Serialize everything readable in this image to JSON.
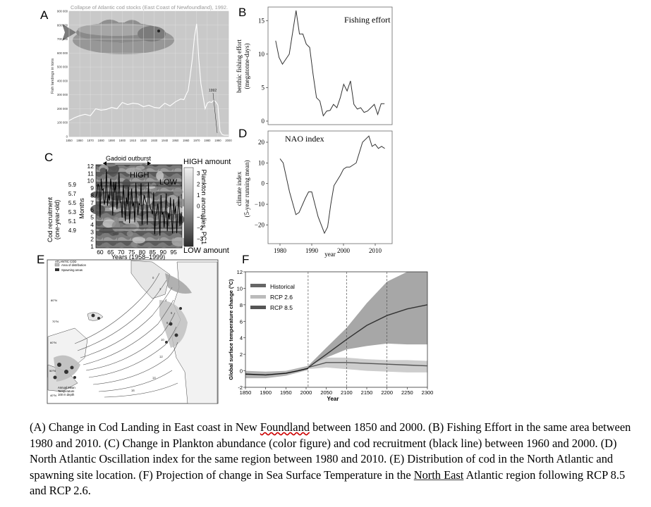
{
  "panels": {
    "A": {
      "letter": "A",
      "title": "Collapse of Atlantic cod stocks (East Coast of Newfoundland), 1992.",
      "ylabel": "Fish landings in tons",
      "yticks": [
        "900 000",
        "800 000",
        "700 000",
        "600 000",
        "500 000",
        "400 000",
        "300 000",
        "200 000",
        "100 000",
        "0"
      ],
      "xticks": [
        "1850",
        "1860",
        "1870",
        "1880",
        "1890",
        "1900",
        "1910",
        "1920",
        "1930",
        "1940",
        "1950",
        "1960",
        "1970",
        "1980",
        "1990",
        "2000"
      ],
      "annotation_1992": "1992"
    },
    "B": {
      "letter": "B",
      "legend": "Fishing effort",
      "ylabel_1": "benthic fishing effort",
      "ylabel_2": "(megatonne-days)",
      "yticks": [
        "15",
        "10",
        "5",
        "0"
      ]
    },
    "C": {
      "letter": "C",
      "top_label": "Gadoid outburst",
      "high_label": "HIGH",
      "low_label": "LOW",
      "high_amount": "HIGH amount",
      "low_amount": "LOW amount",
      "ylabel_1": "Cod recruitment",
      "ylabel_2": "(one-year-old)",
      "months_label": "Months",
      "right_label": "Plankton anomalies, PC1",
      "xlabel": "Years (1958–1999)",
      "recruit_ticks": [
        "5.9",
        "5.7",
        "5.5",
        "5.3",
        "5.1",
        "4.9"
      ],
      "month_ticks": [
        "12",
        "11",
        "10",
        "9",
        "8",
        "7",
        "6",
        "5",
        "4",
        "3",
        "2",
        "1"
      ],
      "xticks": [
        "60",
        "65",
        "70",
        "75",
        "80",
        "85",
        "90",
        "95"
      ],
      "colorbar_ticks": [
        "3",
        "2",
        "1",
        "0",
        "−1",
        "−2",
        "−3"
      ]
    },
    "D": {
      "letter": "D",
      "legend": "NAO index",
      "ylabel_1": "climate index",
      "ylabel_2": "(5-year running mean)",
      "yticks": [
        "20",
        "10",
        "0",
        "−10",
        "−20"
      ],
      "xticks": [
        "1980",
        "1990",
        "2000",
        "2010"
      ],
      "xlabel": "year"
    },
    "E": {
      "letter": "E",
      "legend_title": "ATLANTIC COD",
      "legend_area": "Area of distribution",
      "legend_spawn": "Spawning areas",
      "bottom_legend_1": "Annual Mean",
      "bottom_legend_2": "Temperature",
      "bottom_legend_3": "100 m depth",
      "lat_labels": [
        "80°N",
        "70°N",
        "60°N",
        "50°N",
        "40°N"
      ],
      "iso_labels": [
        "0",
        "2",
        "4",
        "6",
        "8",
        "10",
        "12",
        "14",
        "16"
      ]
    },
    "F": {
      "letter": "F",
      "ylabel": "Global surface temperature change (°C)",
      "xlabel": "Year",
      "legend": [
        "Historical",
        "RCP 2.6",
        "RCP 8.5"
      ],
      "yticks": [
        "12",
        "10",
        "8",
        "6",
        "4",
        "2",
        "0",
        "-2"
      ],
      "xticks": [
        "1850",
        "1900",
        "1950",
        "2000",
        "2050",
        "2100",
        "2150",
        "2200",
        "2250",
        "2300"
      ]
    }
  },
  "chart_data": [
    {
      "type": "line",
      "panel": "A",
      "title": "Collapse of Atlantic cod stocks (East Coast of Newfoundland), 1992.",
      "ylabel": "Fish landings in tons",
      "xlim": [
        1850,
        2000
      ],
      "ylim": [
        0,
        900000
      ],
      "x": [
        1850,
        1855,
        1860,
        1865,
        1870,
        1875,
        1880,
        1885,
        1890,
        1895,
        1900,
        1905,
        1910,
        1915,
        1920,
        1925,
        1930,
        1935,
        1940,
        1945,
        1950,
        1955,
        1958,
        1960,
        1962,
        1964,
        1966,
        1968,
        1970,
        1972,
        1974,
        1976,
        1978,
        1980,
        1982,
        1984,
        1986,
        1988,
        1990,
        1992,
        1994,
        1996,
        1998,
        2000
      ],
      "y": [
        115000,
        135000,
        150000,
        160000,
        150000,
        200000,
        190000,
        195000,
        210000,
        200000,
        245000,
        230000,
        240000,
        235000,
        215000,
        225000,
        210000,
        205000,
        240000,
        220000,
        250000,
        270000,
        265000,
        300000,
        330000,
        440000,
        560000,
        720000,
        810000,
        560000,
        380000,
        290000,
        200000,
        240000,
        250000,
        245000,
        260000,
        250000,
        225000,
        40000,
        15000,
        10000,
        10000,
        10000
      ]
    },
    {
      "type": "line",
      "panel": "B",
      "series": [
        {
          "name": "Fishing effort",
          "x": [
            1981,
            1982,
            1983,
            1985,
            1987,
            1988,
            1989,
            1990,
            1991,
            1992,
            1993,
            1994,
            1995,
            1996,
            1997,
            1998,
            1999,
            2000,
            2001,
            2002,
            2003,
            2004,
            2005,
            2006,
            2007,
            2008,
            2009,
            2010,
            2011,
            2012,
            2013
          ],
          "values": [
            12,
            9.5,
            8.5,
            10,
            16.5,
            13,
            13,
            11.5,
            11,
            7,
            3.5,
            3,
            0.8,
            1.5,
            1.6,
            2.5,
            2,
            3.5,
            5.5,
            4.5,
            6,
            2.5,
            1.8,
            2,
            1.3,
            1.5,
            2,
            2.5,
            1,
            2.6,
            2.6
          ]
        }
      ],
      "ylim": [
        0,
        16.5
      ]
    },
    {
      "type": "heatmap",
      "panel": "C",
      "xlabel": "Years (1958–1999)",
      "ylabel": "Months",
      "xlim": [
        1958,
        1999
      ],
      "ylim": [
        1,
        12
      ]
    },
    {
      "type": "line",
      "panel": "D",
      "series": [
        {
          "name": "NAO index",
          "x": [
            1980,
            1981,
            1983,
            1985,
            1986,
            1988,
            1989,
            1990,
            1992,
            1994,
            1995,
            1996,
            1997,
            1999,
            2000,
            2001,
            2002,
            2004,
            2006,
            2008,
            2009,
            2010,
            2011,
            2012,
            2013
          ],
          "values": [
            12,
            10,
            -4,
            -15,
            -14,
            -7,
            -4,
            -4,
            -16,
            -24,
            -21,
            -10,
            -1,
            4,
            7,
            8,
            8,
            10,
            20,
            23,
            18,
            19,
            17,
            18,
            17
          ]
        }
      ],
      "xlabel": "year",
      "ylim": [
        -25,
        22
      ]
    },
    {
      "type": "area",
      "panel": "F",
      "xlabel": "Year",
      "ylabel": "Global surface temperature change (°C)",
      "xlim": [
        1850,
        2300
      ],
      "ylim": [
        -2,
        12
      ],
      "series": [
        {
          "name": "Historical",
          "x": [
            1850,
            1900,
            1950,
            1980,
            2005
          ],
          "values": [
            -0.4,
            -0.5,
            -0.3,
            0,
            0.3
          ]
        },
        {
          "name": "RCP 2.6",
          "x": [
            2005,
            2050,
            2100,
            2150,
            2200,
            2250,
            2300
          ],
          "values": [
            0.4,
            1,
            1,
            0.9,
            0.8,
            0.7,
            0.6
          ]
        },
        {
          "name": "RCP 8.5",
          "x": [
            2005,
            2050,
            2100,
            2150,
            2200,
            2250,
            2300
          ],
          "values": [
            0.4,
            2,
            3.8,
            5.5,
            6.7,
            7.5,
            8
          ]
        }
      ]
    }
  ],
  "caption": {
    "a": "(A) Change in Cod Landing in East coast in New ",
    "b": "Foundland",
    "c": " between 1850 and 2000. (B) Fishing Effort in the same area between 1980 and 2010. (C) Change in Plankton abundance (color figure) and cod recruitment (black line) between 1960 and 2000. (D) North Atlantic Oscillation index for the same region between 1980 and 2010. (E) Distribution of cod in the North Atlantic and spawning site location. (F) Projection of change in Sea Surface Temperature in the ",
    "d": "North East",
    "e": " Atlantic region following RCP 8.5 and RCP 2.6."
  }
}
